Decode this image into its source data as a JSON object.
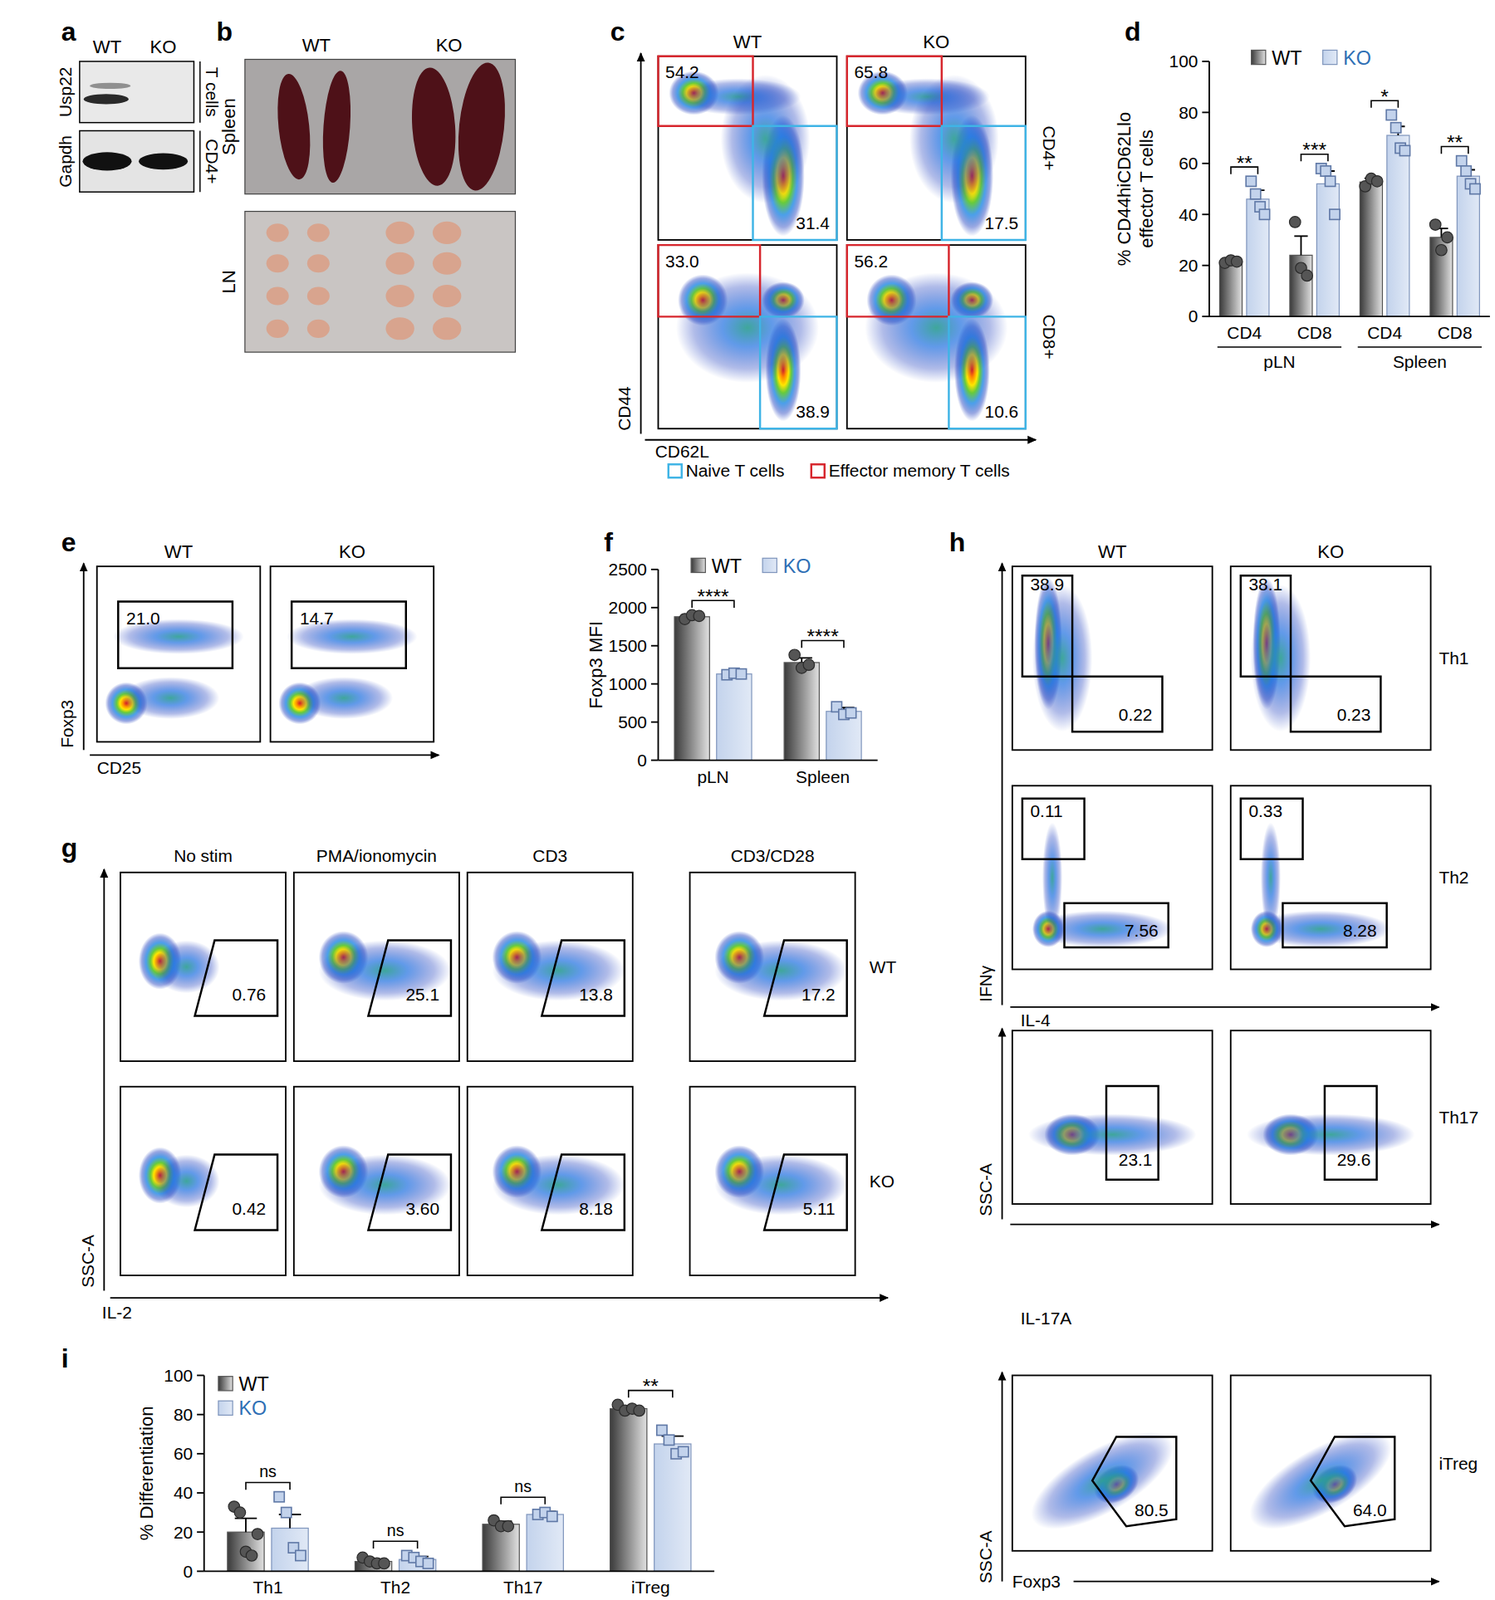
{
  "blot": {
    "panel_label": "a",
    "columns": [
      "WT",
      "KO"
    ],
    "rows": [
      "Usp22",
      "Gapdh"
    ],
    "side_labels": [
      "T cells",
      "CD4+"
    ]
  },
  "photo": {
    "panel_label": "b",
    "columns": [
      "WT",
      "KO"
    ],
    "rows": [
      "Spleen",
      "LN"
    ]
  },
  "flow_c": {
    "panel_label": "c",
    "columns": [
      "WT",
      "KO"
    ],
    "rows": [
      {
        "label": "CD4+",
        "gates": [
          [
            "54.2",
            "31.4"
          ],
          [
            "65.8",
            "17.5"
          ]
        ]
      },
      {
        "label": "CD8+",
        "gates": [
          [
            "33.0",
            "38.9"
          ],
          [
            "56.2",
            "10.6"
          ]
        ]
      }
    ],
    "x_label": "CD62L",
    "y_label": "CD44",
    "legend": [
      {
        "label": "Naive T cells",
        "color": "#3fb4e6"
      },
      {
        "label": "Effector memory T cells",
        "color": "#d7262d"
      }
    ]
  },
  "flow_e": {
    "panel_label": "e",
    "columns": [
      "WT",
      "KO"
    ],
    "gates": [
      "21.0",
      "14.7"
    ],
    "x_label": "CD25",
    "y_label": "Foxp3"
  },
  "flow_g": {
    "panel_label": "g",
    "columns": [
      "No stim",
      "PMA/ionomycin",
      "CD3",
      "CD3/CD28"
    ],
    "rows": [
      {
        "label": "WT",
        "gates": [
          "0.76",
          "25.1",
          "13.8",
          "17.2"
        ]
      },
      {
        "label": "KO",
        "gates": [
          "0.42",
          "3.60",
          "8.18",
          "5.11"
        ]
      }
    ],
    "x_label": "IL-2",
    "y_label": "SSC-A"
  },
  "flow_h": {
    "panel_label": "h",
    "columns": [
      "WT",
      "KO"
    ],
    "rows": [
      {
        "label": "Th1",
        "gates": [
          [
            "38.9",
            "0.22"
          ],
          [
            "38.1",
            "0.23"
          ]
        ]
      },
      {
        "label": "Th2",
        "gates": [
          [
            "0.11",
            "7.56"
          ],
          [
            "0.33",
            "8.28"
          ]
        ]
      },
      {
        "label": "Th17",
        "gates": [
          [
            "23.1"
          ],
          [
            "29.6"
          ]
        ]
      },
      {
        "label": "iTreg",
        "gates": [
          [
            "80.5"
          ],
          [
            "64.0"
          ]
        ]
      }
    ],
    "axes": [
      {
        "rows": [
          0,
          1
        ],
        "x_label": "IL-4",
        "y_label": "IFNγ"
      },
      {
        "rows": [
          2
        ],
        "x_label": "IL-17A",
        "y_label": "SSC-A"
      },
      {
        "rows": [
          3
        ],
        "x_label": "Foxp3",
        "y_label": "SSC-A"
      }
    ]
  },
  "chart_data": [
    {
      "panel_label": "d",
      "type": "bar",
      "y_label": [
        "% CD44hiCD62Llo",
        "effector T cells"
      ],
      "categories": [
        "CD4",
        "CD8",
        "CD4",
        "CD8"
      ],
      "category_groups": [
        {
          "label": "pLN",
          "categories": [
            0,
            1
          ]
        },
        {
          "label": "Spleen",
          "categories": [
            2,
            3
          ]
        }
      ],
      "series": [
        {
          "name": "WT",
          "color": "#3a3a3a",
          "marker": "circle",
          "values": [
            21.5,
            24,
            52.7,
            31
          ],
          "errors": [
            0.8,
            7.5,
            1.5,
            3.5
          ],
          "points": [
            [
              21,
              22,
              21.5
            ],
            [
              37,
              19,
              16
            ],
            [
              51,
              54,
              53
            ],
            [
              36,
              26,
              31
            ]
          ]
        },
        {
          "name": "KO",
          "color": "#c3d3ec",
          "marker": "square",
          "values": [
            46,
            52,
            71,
            55
          ],
          "errors": [
            3.5,
            5,
            3.5,
            2.5
          ],
          "points": [
            [
              53,
              48,
              43,
              40
            ],
            [
              58,
              57,
              53,
              40
            ],
            [
              79,
              74,
              66,
              65
            ],
            [
              61,
              57,
              52,
              50
            ]
          ]
        }
      ],
      "significance": [
        {
          "category": 0,
          "label": "**"
        },
        {
          "category": 1,
          "label": "***"
        },
        {
          "category": 2,
          "label": "*"
        },
        {
          "category": 3,
          "label": "**"
        }
      ],
      "ylim": [
        0,
        100
      ],
      "yticks": [
        0,
        20,
        40,
        60,
        80,
        100
      ],
      "legend": "top"
    },
    {
      "panel_label": "f",
      "type": "bar",
      "y_label": "Foxp3 MFI",
      "categories": [
        "pLN",
        "Spleen"
      ],
      "series": [
        {
          "name": "WT",
          "color": "#3a3a3a",
          "marker": "circle",
          "values": [
            1880,
            1280
          ],
          "errors": [
            25,
            60
          ],
          "points": [
            [
              1850,
              1900,
              1890
            ],
            [
              1380,
              1210,
              1250
            ]
          ]
        },
        {
          "name": "KO",
          "color": "#c3d3ec",
          "marker": "square",
          "values": [
            1130,
            640
          ],
          "errors": [
            15,
            50
          ],
          "points": [
            [
              1120,
              1140,
              1130
            ],
            [
              700,
              600,
              620
            ]
          ]
        }
      ],
      "significance": [
        {
          "category": 0,
          "label": "****"
        },
        {
          "category": 1,
          "label": "****"
        }
      ],
      "ylim": [
        0,
        2500
      ],
      "yticks": [
        0,
        500,
        1000,
        1500,
        2000,
        2500
      ],
      "legend": "top"
    },
    {
      "panel_label": "i",
      "type": "bar",
      "y_label": "% Differentiation",
      "categories": [
        "Th1",
        "Th2",
        "Th17",
        "iTreg"
      ],
      "series": [
        {
          "name": "WT",
          "color": "#3a3a3a",
          "marker": "circle",
          "values": [
            20,
            5,
            24,
            83
          ],
          "errors": [
            7,
            1.2,
            1.5,
            1.2
          ],
          "points": [
            [
              33,
              30,
              10,
              8,
              19
            ],
            [
              7,
              5,
              4,
              4
            ],
            [
              26,
              23,
              23
            ],
            [
              85,
              82,
              83,
              82
            ]
          ]
        },
        {
          "name": "KO",
          "color": "#c3d3ec",
          "marker": "square",
          "values": [
            22,
            6,
            29,
            65
          ],
          "errors": [
            7,
            1.5,
            1.5,
            4
          ],
          "points": [
            [
              38,
              30,
              12,
              8
            ],
            [
              8,
              7,
              5,
              4
            ],
            [
              29,
              30,
              28
            ],
            [
              72,
              67,
              60,
              61
            ]
          ]
        }
      ],
      "significance": [
        {
          "category": 0,
          "label": "ns"
        },
        {
          "category": 1,
          "label": "ns"
        },
        {
          "category": 2,
          "label": "ns"
        },
        {
          "category": 3,
          "label": "**"
        }
      ],
      "ylim": [
        0,
        100
      ],
      "yticks": [
        0,
        20,
        40,
        60,
        80,
        100
      ],
      "legend": "top-left"
    }
  ]
}
